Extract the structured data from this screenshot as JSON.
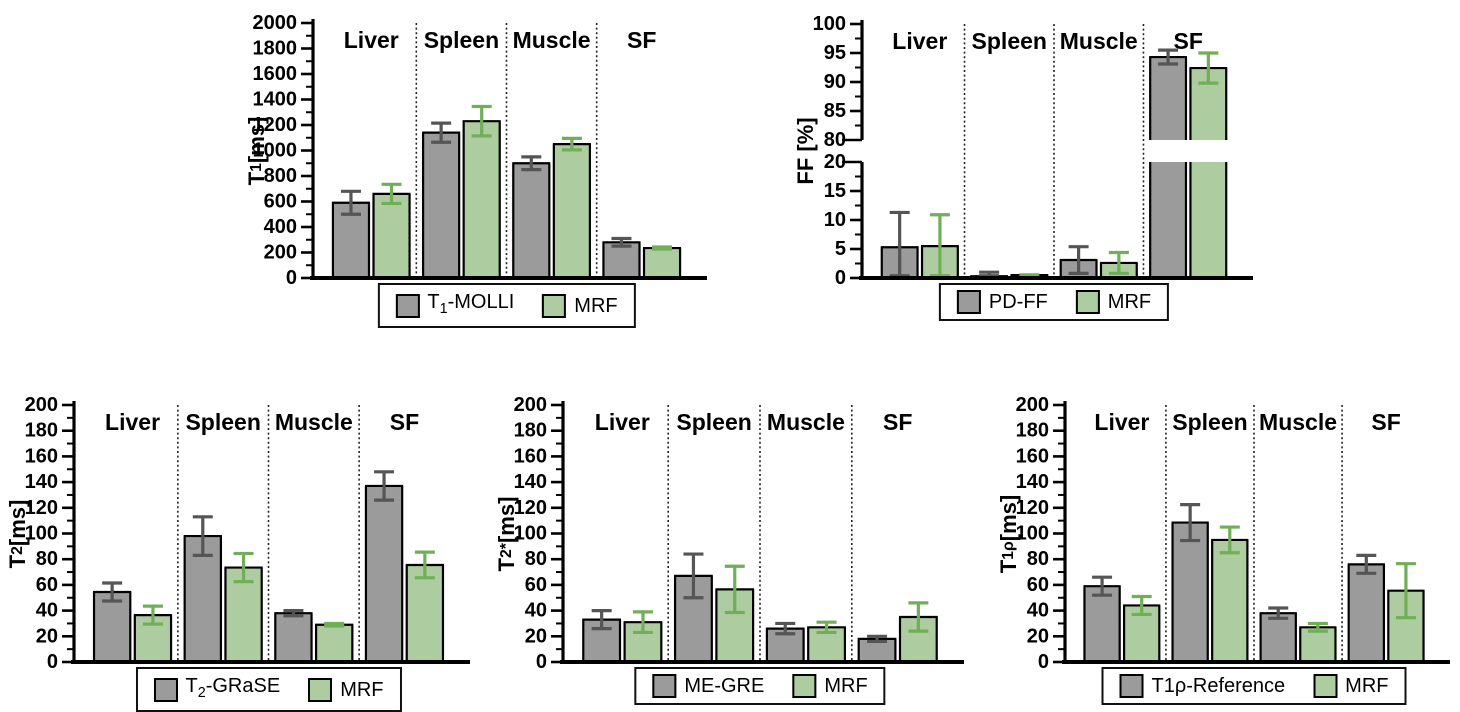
{
  "palette": {
    "background": "#ffffff",
    "axis": "#000000",
    "reference_fill": "#9B9B9B",
    "reference_edge": "#000000",
    "reference_error": "#555555",
    "mrf_fill": "#ADCDA0",
    "mrf_edge": "#000000",
    "mrf_error": "#70AE58",
    "separator": "#222222"
  },
  "chart_data": [
    {
      "type": "bar",
      "id": "t1",
      "ylabel": "T1 [ms]",
      "ylabel_parts": [
        [
          "t",
          "T"
        ],
        [
          "sub",
          "1"
        ],
        [
          "t",
          " [ms]"
        ]
      ],
      "categories": [
        "Liver",
        "Spleen",
        "Muscle",
        "SF"
      ],
      "legend_position": "bottom",
      "grid": false,
      "axis": {
        "major": 200,
        "minor": 100,
        "segments": [
          {
            "min": 0,
            "max": 2000
          }
        ]
      },
      "series": [
        {
          "name": "T1-MOLLI",
          "label_parts": [
            [
              "t",
              "T"
            ],
            [
              "sub",
              "1"
            ],
            [
              "t",
              "-MOLLI"
            ]
          ],
          "fill": "#9B9B9B",
          "edge": "#000000",
          "error_color": "#555555",
          "values": [
            590,
            1140,
            900,
            280
          ],
          "errors": [
            90,
            75,
            50,
            30
          ]
        },
        {
          "name": "MRF",
          "label_parts": [
            [
              "t",
              "MRF"
            ]
          ],
          "fill": "#ADCDA0",
          "edge": "#000000",
          "error_color": "#70AE58",
          "values": [
            660,
            1230,
            1050,
            235
          ],
          "errors": [
            75,
            115,
            45,
            8
          ]
        }
      ]
    },
    {
      "type": "bar",
      "id": "ff",
      "ylabel": "FF [%]",
      "ylabel_parts": [
        [
          "t",
          "FF [%]"
        ]
      ],
      "categories": [
        "Liver",
        "Spleen",
        "Muscle",
        "SF"
      ],
      "legend_position": "bottom",
      "grid": false,
      "axis": {
        "major": 5,
        "minor": 2.5,
        "segments": [
          {
            "min": 0,
            "max": 20
          },
          {
            "min": 80,
            "max": 100
          }
        ],
        "break_gap": true
      },
      "series": [
        {
          "name": "PD-FF",
          "label_parts": [
            [
              "t",
              "PD-FF"
            ]
          ],
          "fill": "#9B9B9B",
          "edge": "#000000",
          "error_color": "#555555",
          "values": [
            5.3,
            0.3,
            3.1,
            94.3
          ],
          "errors": [
            6,
            0.7,
            2.3,
            1.2
          ]
        },
        {
          "name": "MRF",
          "label_parts": [
            [
              "t",
              "MRF"
            ]
          ],
          "fill": "#ADCDA0",
          "edge": "#000000",
          "error_color": "#70AE58",
          "values": [
            5.5,
            0.5,
            2.6,
            92.4
          ],
          "errors": [
            5.4,
            0.05,
            1.8,
            2.6
          ]
        }
      ]
    },
    {
      "type": "bar",
      "id": "t2",
      "ylabel": "T2 [ms]",
      "ylabel_parts": [
        [
          "t",
          "T"
        ],
        [
          "sub",
          "2"
        ],
        [
          "t",
          " [ms]"
        ]
      ],
      "categories": [
        "Liver",
        "Spleen",
        "Muscle",
        "SF"
      ],
      "legend_position": "bottom",
      "grid": false,
      "axis": {
        "major": 20,
        "minor": 10,
        "segments": [
          {
            "min": 0,
            "max": 200
          }
        ]
      },
      "series": [
        {
          "name": "T2-GRaSE",
          "label_parts": [
            [
              "t",
              "T"
            ],
            [
              "sub",
              "2"
            ],
            [
              "t",
              "-GRaSE"
            ]
          ],
          "fill": "#9B9B9B",
          "edge": "#000000",
          "error_color": "#555555",
          "values": [
            54.5,
            98,
            38,
            137
          ],
          "errors": [
            7,
            15,
            2,
            11
          ]
        },
        {
          "name": "MRF",
          "label_parts": [
            [
              "t",
              "MRF"
            ]
          ],
          "fill": "#ADCDA0",
          "edge": "#000000",
          "error_color": "#70AE58",
          "values": [
            36.5,
            73.5,
            29,
            75.5
          ],
          "errors": [
            7,
            11,
            1,
            10
          ]
        }
      ]
    },
    {
      "type": "bar",
      "id": "t2star",
      "ylabel": "T2* [ms]",
      "ylabel_parts": [
        [
          "t",
          "T"
        ],
        [
          "sub",
          "2"
        ],
        [
          "sup",
          "*"
        ],
        [
          "t",
          " [ms]"
        ]
      ],
      "categories": [
        "Liver",
        "Spleen",
        "Muscle",
        "SF"
      ],
      "legend_position": "bottom",
      "grid": false,
      "axis": {
        "major": 20,
        "minor": 10,
        "segments": [
          {
            "min": 0,
            "max": 200
          }
        ]
      },
      "series": [
        {
          "name": "ME-GRE",
          "label_parts": [
            [
              "t",
              "ME-GRE"
            ]
          ],
          "fill": "#9B9B9B",
          "edge": "#000000",
          "error_color": "#555555",
          "values": [
            33,
            67,
            26,
            18
          ],
          "errors": [
            7,
            17,
            4,
            2
          ]
        },
        {
          "name": "MRF",
          "label_parts": [
            [
              "t",
              "MRF"
            ]
          ],
          "fill": "#ADCDA0",
          "edge": "#000000",
          "error_color": "#70AE58",
          "values": [
            31,
            56.5,
            27,
            35
          ],
          "errors": [
            8,
            18,
            4,
            11
          ]
        }
      ]
    },
    {
      "type": "bar",
      "id": "t1rho",
      "ylabel": "T1ρ [ms]",
      "ylabel_parts": [
        [
          "t",
          "T"
        ],
        [
          "sub",
          "1ρ"
        ],
        [
          "t",
          " [ms]"
        ]
      ],
      "categories": [
        "Liver",
        "Spleen",
        "Muscle",
        "SF"
      ],
      "legend_position": "bottom",
      "grid": false,
      "axis": {
        "major": 20,
        "minor": 10,
        "segments": [
          {
            "min": 0,
            "max": 200
          }
        ]
      },
      "series": [
        {
          "name": "T1ρ-Reference",
          "label_parts": [
            [
              "t",
              "T1ρ-Reference"
            ]
          ],
          "fill": "#9B9B9B",
          "edge": "#000000",
          "error_color": "#555555",
          "values": [
            59,
            108.5,
            38,
            76
          ],
          "errors": [
            7,
            14,
            4,
            7
          ]
        },
        {
          "name": "MRF",
          "label_parts": [
            [
              "t",
              "MRF"
            ]
          ],
          "fill": "#ADCDA0",
          "edge": "#000000",
          "error_color": "#70AE58",
          "values": [
            44,
            95,
            27,
            55.5
          ],
          "errors": [
            7,
            10,
            3,
            21
          ]
        }
      ]
    }
  ]
}
